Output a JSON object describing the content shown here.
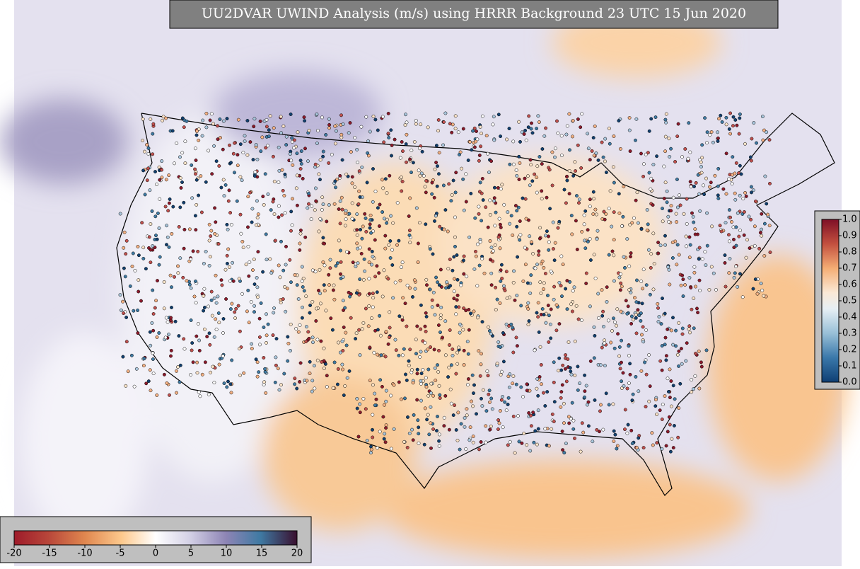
{
  "map": {
    "title": "UU2DVAR UWIND Analysis (m/s) using HRRR Background 23 UTC 15 Jun 2020",
    "wind_colorbar": {
      "lim": [
        -20,
        20
      ],
      "ticks": [
        -20,
        -15,
        -10,
        -5,
        0,
        5,
        10,
        15,
        20
      ]
    },
    "weight_colorbar": {
      "lim": [
        0,
        1
      ],
      "ticks": [
        {
          "value": 0,
          "label": "0.0"
        },
        {
          "value": 0.1,
          "label": "0.1"
        },
        {
          "value": 0.2,
          "label": "0.2"
        },
        {
          "value": 0.3,
          "label": "0.3"
        },
        {
          "value": 0.4,
          "label": "0.4"
        },
        {
          "value": 0.5,
          "label": "0.5"
        },
        {
          "value": 0.6,
          "label": "0.6"
        },
        {
          "value": 0.7,
          "label": "0.7"
        },
        {
          "value": 0.8,
          "label": "0.8"
        },
        {
          "value": 0.9,
          "label": "0.9"
        },
        {
          "value": 1,
          "label": "1.0"
        }
      ]
    }
  }
}
